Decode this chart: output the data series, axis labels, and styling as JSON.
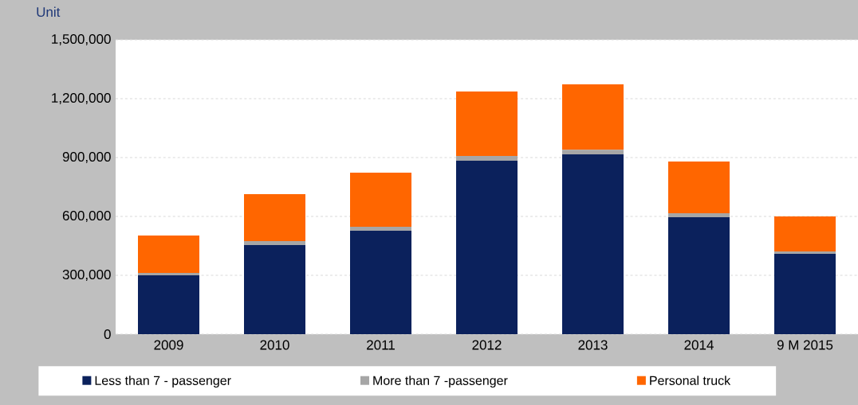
{
  "chart_data": {
    "type": "bar",
    "stacked": true,
    "ylabel": "Unit",
    "categories": [
      "2009",
      "2010",
      "2011",
      "2012",
      "2013",
      "2014",
      "9 M 2015"
    ],
    "series": [
      {
        "name": "Less than 7 - passenger",
        "color": "#0b215c",
        "values": [
          300000,
          454000,
          527000,
          884000,
          916000,
          596000,
          409000
        ]
      },
      {
        "name": "More than 7 -passenger",
        "color": "#a6a6a6",
        "values": [
          12000,
          20000,
          20000,
          24000,
          24000,
          20000,
          13000
        ]
      },
      {
        "name": "Personal truck",
        "color": "#ff6600",
        "values": [
          191000,
          240000,
          276000,
          328000,
          333000,
          264000,
          178000
        ]
      }
    ],
    "ylim": [
      0,
      1500000
    ],
    "yticks": [
      {
        "value": 0,
        "label": "0"
      },
      {
        "value": 300000,
        "label": "300,000"
      },
      {
        "value": 600000,
        "label": "600,000"
      },
      {
        "value": 900000,
        "label": "900,000"
      },
      {
        "value": 1200000,
        "label": "1,200,000"
      },
      {
        "value": 1500000,
        "label": "1,500,000"
      }
    ],
    "grid": "y",
    "legend": "bottom"
  }
}
